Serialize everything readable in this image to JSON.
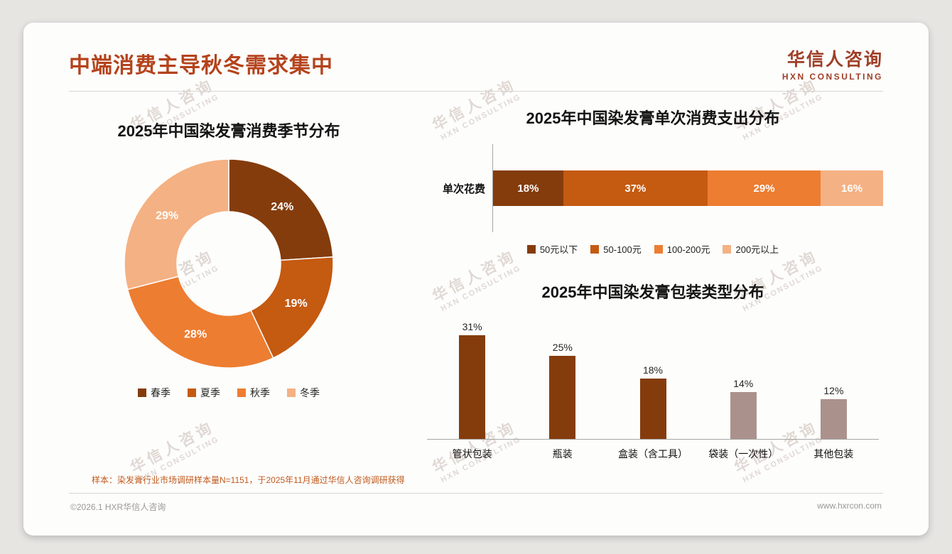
{
  "page": {
    "title": "中端消费主导秋冬需求集中",
    "logo": {
      "cn": "华信人咨询",
      "en": "HXN CONSULTING"
    },
    "watermark": {
      "cn": "华信人咨询",
      "en": "HXN CONSULTING"
    },
    "footnote": "样本：染发膏行业市场调研样本量N=1151，于2025年11月通过华信人咨询调研获得",
    "copyright": "©2026.1 HXR华信人咨询",
    "website": "www.hxrcon.com"
  },
  "chart_data": [
    {
      "type": "pie",
      "subtype": "donut",
      "title": "2025年中国染发膏消费季节分布",
      "categories": [
        "春季",
        "夏季",
        "秋季",
        "冬季"
      ],
      "values": [
        24,
        19,
        28,
        29
      ],
      "labels": [
        "24%",
        "19%",
        "28%",
        "29%"
      ],
      "colors": [
        "#843c0c",
        "#c55a11",
        "#ed7d31",
        "#f4b183"
      ],
      "legend_position": "bottom"
    },
    {
      "type": "bar",
      "subtype": "stacked-horizontal",
      "title": "2025年中国染发膏单次消费支出分布",
      "row_label": "单次花费",
      "categories": [
        "50元以下",
        "50-100元",
        "100-200元",
        "200元以上"
      ],
      "values": [
        18,
        37,
        29,
        16
      ],
      "labels": [
        "18%",
        "37%",
        "29%",
        "16%"
      ],
      "colors": [
        "#843c0c",
        "#c55a11",
        "#ed7d31",
        "#f4b183"
      ],
      "xlim": [
        0,
        100
      ],
      "legend_position": "bottom"
    },
    {
      "type": "bar",
      "title": "2025年中国染发膏包装类型分布",
      "categories": [
        "管状包装",
        "瓶装",
        "盒装（含工具）",
        "袋装（一次性）",
        "其他包装"
      ],
      "values": [
        31,
        25,
        18,
        14,
        12
      ],
      "labels": [
        "31%",
        "25%",
        "18%",
        "14%",
        "12%"
      ],
      "colors": [
        "#843c0c",
        "#843c0c",
        "#843c0c",
        "#ab918c",
        "#ab918c"
      ],
      "ylim": [
        0,
        35
      ],
      "grid": false
    }
  ]
}
